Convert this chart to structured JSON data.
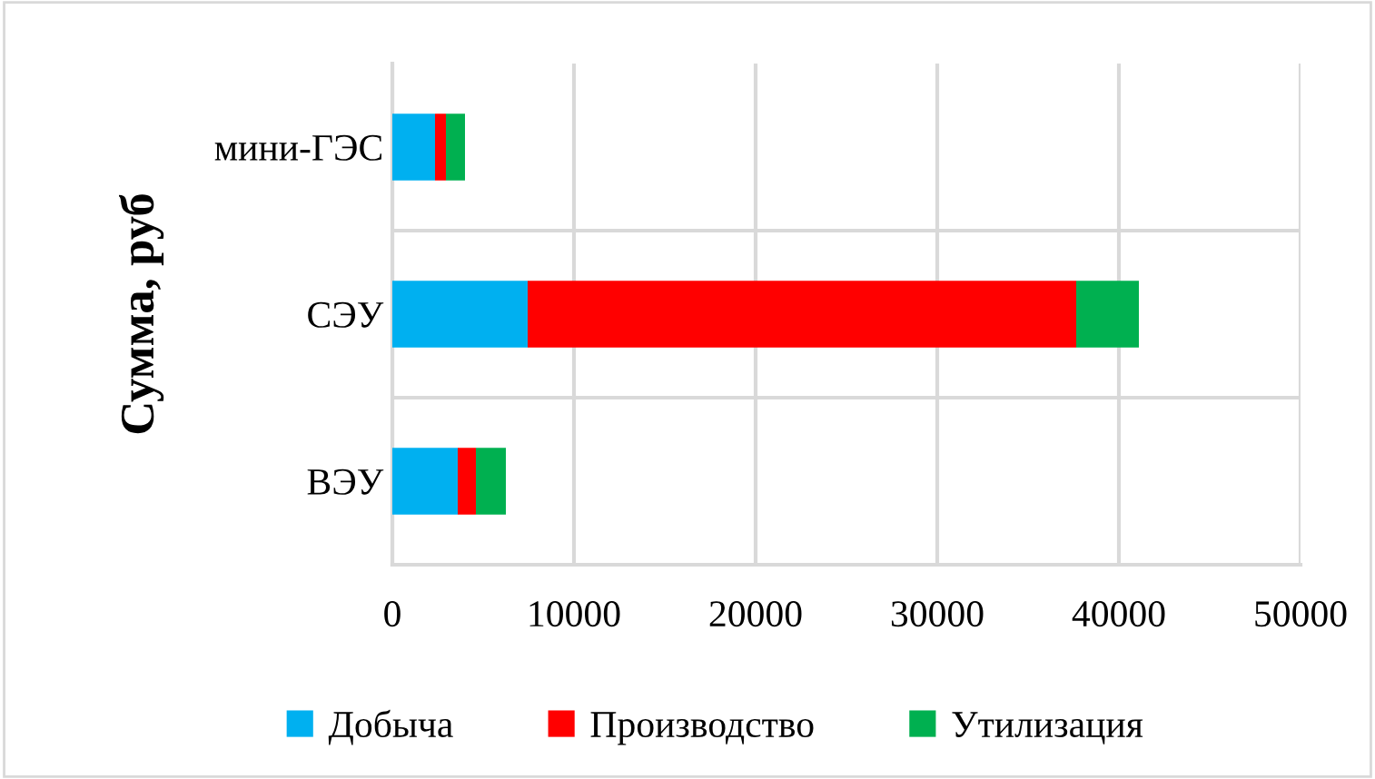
{
  "chart_data": {
    "type": "bar",
    "orientation": "horizontal",
    "stacked": true,
    "ylabel": "Сумма, руб",
    "categories": [
      "мини-ГЭС",
      "СЭУ",
      "ВЭУ"
    ],
    "series": [
      {
        "name": "Добыча",
        "color": "#00b0f0",
        "values": [
          2350,
          7450,
          3600
        ]
      },
      {
        "name": "Производство",
        "color": "#ff0000",
        "values": [
          600,
          30200,
          1000
        ]
      },
      {
        "name": "Утилизация",
        "color": "#00b050",
        "values": [
          1050,
          3450,
          1650
        ]
      }
    ],
    "xlim": [
      0,
      50000
    ],
    "xticks": [
      0,
      10000,
      20000,
      30000,
      40000,
      50000
    ],
    "grid": true,
    "legend": "bottom"
  }
}
